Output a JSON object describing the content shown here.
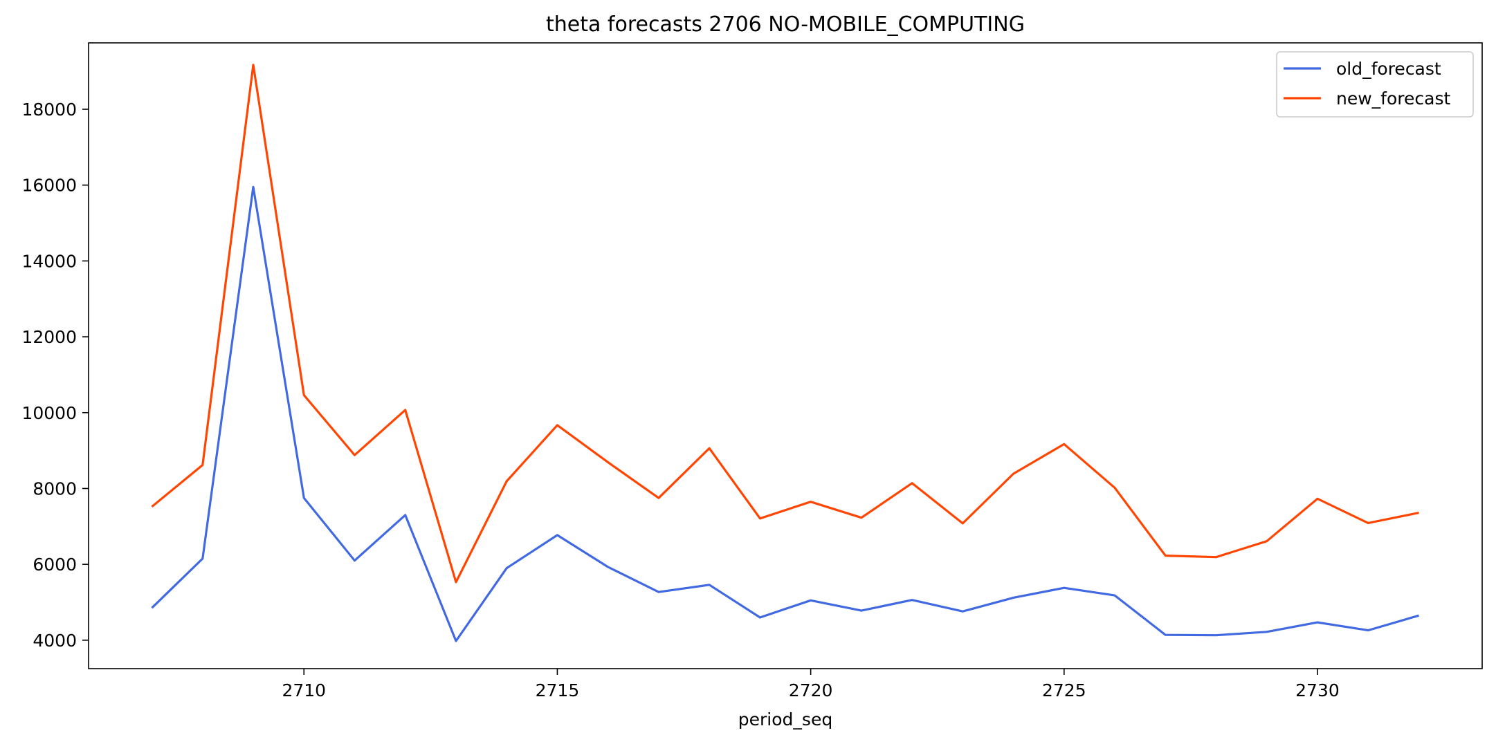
{
  "chart_data": {
    "type": "line",
    "title": "theta forecasts 2706 NO-MOBILE_COMPUTING",
    "xlabel": "period_seq",
    "ylabel": "",
    "x": [
      2707,
      2708,
      2709,
      2710,
      2711,
      2712,
      2713,
      2714,
      2715,
      2716,
      2717,
      2718,
      2719,
      2720,
      2721,
      2722,
      2723,
      2724,
      2725,
      2726,
      2727,
      2728,
      2729,
      2730,
      2731,
      2732
    ],
    "xlim": [
      2705.75,
      2733.25
    ],
    "ylim": [
      3250,
      19750
    ],
    "x_ticks": [
      2710,
      2715,
      2720,
      2725,
      2730
    ],
    "y_ticks": [
      4000,
      6000,
      8000,
      10000,
      12000,
      14000,
      16000,
      18000
    ],
    "grid": false,
    "legend_position": "top-right",
    "series": [
      {
        "name": "old_forecast",
        "color": "#4169e1",
        "values": [
          4850,
          6150,
          15950,
          7750,
          6100,
          7300,
          3980,
          5900,
          6770,
          5930,
          5270,
          5460,
          4600,
          5050,
          4780,
          5060,
          4760,
          5120,
          5380,
          5180,
          4140,
          4130,
          4220,
          4470,
          4260,
          4650
        ]
      },
      {
        "name": "new_forecast",
        "color": "#ff4500",
        "values": [
          7520,
          8620,
          19170,
          10460,
          8880,
          10070,
          5530,
          8190,
          9670,
          8690,
          7750,
          9060,
          7210,
          7650,
          7230,
          8140,
          7080,
          8390,
          9170,
          8020,
          6230,
          6190,
          6610,
          7730,
          7090,
          7360
        ]
      }
    ]
  }
}
